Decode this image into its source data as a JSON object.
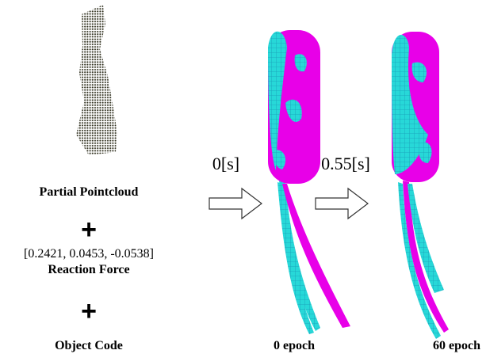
{
  "left": {
    "input_label": "Partial Pointcloud",
    "plus_1": "+",
    "force_vector": "[0.2421, 0.0453, -0.0538]",
    "force_label": "Reaction Force",
    "plus_2": "+",
    "code_label": "Object Code"
  },
  "steps": [
    {
      "time": "0[s]",
      "caption": "0 epoch"
    },
    {
      "time": "0.55[s]",
      "caption": "60 epoch"
    }
  ]
}
